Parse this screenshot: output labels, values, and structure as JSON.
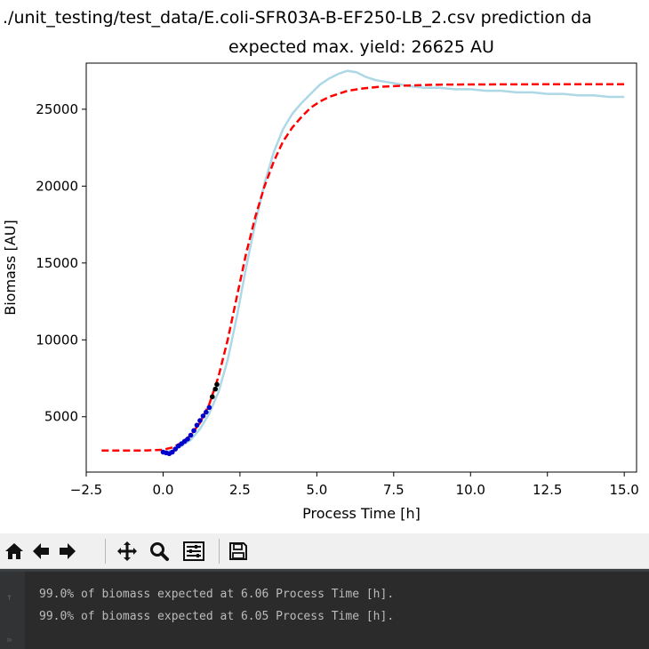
{
  "window": {
    "suptitle": "./unit_testing/test_data/E.coli-SFR03A-B-EF250-LB_2.csv prediction da"
  },
  "chart_data": {
    "type": "line",
    "title": "expected max. yield: 26625 AU",
    "xlabel": "Process Time [h]",
    "ylabel": "Biomass [AU]",
    "xlim": [
      -2.5,
      15.4
    ],
    "ylim": [
      1400,
      28000
    ],
    "xticks": [
      -2.5,
      0.0,
      2.5,
      5.0,
      7.5,
      10.0,
      12.5,
      15.0
    ],
    "xtick_labels": [
      "−2.5",
      "0.0",
      "2.5",
      "5.0",
      "7.5",
      "10.0",
      "12.5",
      "15.0"
    ],
    "yticks": [
      5000,
      10000,
      15000,
      20000,
      25000
    ],
    "ytick_labels": [
      "5000",
      "10000",
      "15000",
      "20000",
      "25000"
    ],
    "grid": false,
    "legend": "none",
    "series": [
      {
        "style": "solid",
        "color": "#add8e6",
        "x": [
          0.0,
          0.3,
          0.6,
          0.9,
          1.2,
          1.5,
          1.8,
          2.1,
          2.4,
          2.7,
          3.0,
          3.3,
          3.6,
          3.9,
          4.2,
          4.5,
          4.8,
          5.1,
          5.4,
          5.7,
          6.0,
          6.3,
          6.6,
          6.9,
          7.2,
          7.5,
          8.0,
          8.5,
          9.0,
          9.5,
          10.0,
          10.5,
          11.0,
          11.5,
          12.0,
          12.5,
          13.0,
          13.5,
          14.0,
          14.5,
          15.0
        ],
        "y": [
          2700,
          2800,
          3100,
          3500,
          4200,
          5200,
          6600,
          8700,
          11500,
          14700,
          17600,
          20200,
          22200,
          23700,
          24700,
          25400,
          26000,
          26600,
          27000,
          27300,
          27500,
          27400,
          27100,
          26900,
          26800,
          26700,
          26500,
          26400,
          26400,
          26300,
          26300,
          26200,
          26200,
          26100,
          26100,
          26000,
          26000,
          25900,
          25900,
          25800,
          25800
        ]
      },
      {
        "style": "dashed",
        "color": "#ff0000",
        "x": [
          -2.0,
          -1.5,
          -1.0,
          -0.5,
          0.0,
          0.3,
          0.6,
          0.9,
          1.2,
          1.5,
          1.8,
          2.1,
          2.4,
          2.7,
          3.0,
          3.3,
          3.6,
          3.9,
          4.2,
          4.5,
          4.8,
          5.1,
          5.4,
          5.7,
          6.0,
          6.5,
          7.0,
          7.5,
          8.0,
          9.0,
          10.0,
          11.0,
          12.0,
          13.0,
          14.0,
          15.0
        ],
        "y": [
          2800,
          2800,
          2800,
          2810,
          2850,
          3000,
          3300,
          3800,
          4600,
          5800,
          7600,
          10000,
          12800,
          15600,
          18000,
          20000,
          21600,
          22900,
          23800,
          24500,
          25100,
          25500,
          25800,
          26000,
          26200,
          26350,
          26450,
          26500,
          26550,
          26600,
          26610,
          26620,
          26625,
          26625,
          26625,
          26625
        ]
      },
      {
        "style": "points",
        "color": "#0000cc",
        "x": [
          0.0,
          0.1,
          0.2,
          0.3,
          0.4,
          0.5,
          0.6,
          0.7,
          0.8,
          0.9,
          1.0,
          1.1,
          1.2,
          1.3,
          1.4,
          1.5
        ],
        "y": [
          2700,
          2650,
          2600,
          2700,
          2900,
          3100,
          3250,
          3400,
          3550,
          3800,
          4100,
          4450,
          4750,
          5050,
          5300,
          5600
        ]
      },
      {
        "style": "points",
        "color": "#000000",
        "x": [
          1.6,
          1.7,
          1.75
        ],
        "y": [
          6300,
          6800,
          7100
        ]
      }
    ]
  },
  "toolbar": {
    "buttons": [
      {
        "name": "home-button",
        "icon": "home-icon"
      },
      {
        "name": "back-button",
        "icon": "arrow-left-icon"
      },
      {
        "name": "forward-button",
        "icon": "arrow-right-icon"
      },
      {
        "name": "pan-button",
        "icon": "move-icon"
      },
      {
        "name": "zoom-button",
        "icon": "magnifier-icon"
      },
      {
        "name": "configure-subplots-button",
        "icon": "sliders-icon"
      },
      {
        "name": "save-button",
        "icon": "floppy-disk-icon"
      }
    ]
  },
  "console": {
    "lines": [
      "99.0% of biomass expected at 6.06 Process Time [h].",
      "99.0% of biomass expected at 6.05 Process Time [h]."
    ]
  }
}
